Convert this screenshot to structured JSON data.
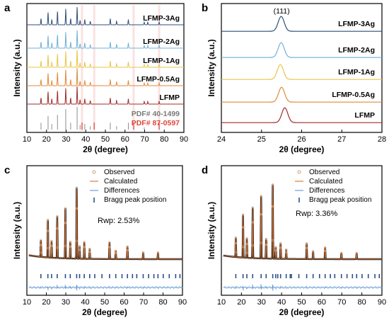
{
  "colors": {
    "lfmp_3ag": "#2f4f7a",
    "lfmp_2ag": "#6fb0d8",
    "lfmp_1ag": "#e8c547",
    "lfmp_05ag": "#e08a3c",
    "lfmp": "#a02c2c",
    "pdf_40_1499": "#8c8c8c",
    "pdf_87_0597": "#e0453a",
    "observed": "#c8a080",
    "calculated": "#e07b39",
    "differences": "#6a9fd8",
    "bragg": "#2d4f8a"
  },
  "chart_data": [
    {
      "panel": "a",
      "type": "line",
      "xlabel": "2θ (degree)",
      "ylabel": "Intensity (a.u.)",
      "xlim": [
        10,
        90
      ],
      "xticks": [
        10,
        20,
        30,
        40,
        50,
        60,
        70,
        80,
        90
      ],
      "series": [
        {
          "name": "LFMP-3Ag",
          "peaks": [
            [
              17.2,
              0.35
            ],
            [
              20.8,
              0.7
            ],
            [
              22.7,
              0.3
            ],
            [
              25.6,
              0.75
            ],
            [
              29.8,
              0.9
            ],
            [
              32.3,
              0.35
            ],
            [
              35.6,
              1.0
            ],
            [
              37.1,
              0.25
            ],
            [
              39.5,
              0.3
            ],
            [
              42.3,
              0.2
            ],
            [
              52.5,
              0.35
            ],
            [
              55.7,
              0.2
            ],
            [
              61.7,
              0.3
            ],
            [
              69.8,
              0.15
            ],
            [
              71.6,
              0.15
            ],
            [
              77.4,
              0.15
            ]
          ]
        },
        {
          "name": "LFMP-2Ag",
          "peaks": [
            [
              17.2,
              0.35
            ],
            [
              20.8,
              0.7
            ],
            [
              22.7,
              0.3
            ],
            [
              25.6,
              0.75
            ],
            [
              29.8,
              0.9
            ],
            [
              32.3,
              0.35
            ],
            [
              35.6,
              1.0
            ],
            [
              37.1,
              0.25
            ],
            [
              39.5,
              0.3
            ],
            [
              42.3,
              0.2
            ],
            [
              52.5,
              0.35
            ],
            [
              55.7,
              0.2
            ],
            [
              61.7,
              0.3
            ],
            [
              69.8,
              0.15
            ],
            [
              71.6,
              0.15
            ],
            [
              77.4,
              0.15
            ]
          ]
        },
        {
          "name": "LFMP-1Ag",
          "peaks": [
            [
              17.2,
              0.35
            ],
            [
              20.8,
              0.7
            ],
            [
              22.7,
              0.3
            ],
            [
              25.6,
              0.75
            ],
            [
              29.8,
              0.9
            ],
            [
              32.3,
              0.35
            ],
            [
              35.6,
              1.0
            ],
            [
              37.1,
              0.25
            ],
            [
              39.5,
              0.3
            ],
            [
              42.3,
              0.2
            ],
            [
              52.5,
              0.35
            ],
            [
              55.7,
              0.2
            ],
            [
              61.7,
              0.3
            ],
            [
              69.8,
              0.15
            ],
            [
              71.6,
              0.15
            ],
            [
              77.4,
              0.15
            ]
          ]
        },
        {
          "name": "LFMP-0.5Ag",
          "peaks": [
            [
              17.2,
              0.35
            ],
            [
              20.8,
              0.7
            ],
            [
              22.7,
              0.3
            ],
            [
              25.6,
              0.75
            ],
            [
              29.8,
              0.9
            ],
            [
              32.3,
              0.35
            ],
            [
              35.6,
              1.0
            ],
            [
              37.1,
              0.25
            ],
            [
              39.5,
              0.3
            ],
            [
              42.3,
              0.2
            ],
            [
              52.5,
              0.35
            ],
            [
              55.7,
              0.2
            ],
            [
              61.7,
              0.3
            ],
            [
              69.8,
              0.15
            ],
            [
              71.6,
              0.15
            ],
            [
              77.4,
              0.15
            ]
          ]
        },
        {
          "name": "LFMP",
          "peaks": [
            [
              17.2,
              0.35
            ],
            [
              20.8,
              0.7
            ],
            [
              22.7,
              0.3
            ],
            [
              25.6,
              0.75
            ],
            [
              29.8,
              0.9
            ],
            [
              32.3,
              0.35
            ],
            [
              35.6,
              1.0
            ],
            [
              37.1,
              0.25
            ],
            [
              39.5,
              0.3
            ],
            [
              42.3,
              0.2
            ],
            [
              52.5,
              0.35
            ],
            [
              55.7,
              0.2
            ],
            [
              61.7,
              0.3
            ],
            [
              69.8,
              0.15
            ],
            [
              71.6,
              0.15
            ],
            [
              77.4,
              0.15
            ]
          ]
        }
      ],
      "reference_lines": [
        {
          "name": "PDF# 40-1499",
          "positions": [
            17.2,
            20.8,
            22.7,
            25.6,
            29.8,
            32.3,
            35.6,
            37.1,
            39.5,
            42.3,
            52.5,
            55.7,
            61.7,
            69.8,
            77.4
          ],
          "heights": [
            0.3,
            0.6,
            0.25,
            0.65,
            0.9,
            0.3,
            1.0,
            0.2,
            0.25,
            0.15,
            0.3,
            0.15,
            0.3,
            0.1,
            0.1
          ]
        },
        {
          "name": "PDF# 87-0597",
          "positions": [
            38.1,
            44.3,
            64.4,
            77.4
          ]
        }
      ],
      "labels": [
        "LFMP-3Ag",
        "LFMP-2Ag",
        "LFMP-1Ag",
        "LFMP-0.5Ag",
        "LFMP",
        "PDF# 40-1499",
        "PDF# 87-0597"
      ]
    },
    {
      "panel": "b",
      "type": "line",
      "xlabel": "2θ (degree)",
      "ylabel": "Intensity (a.u.)",
      "xlim": [
        24,
        28
      ],
      "xticks": [
        24,
        25,
        26,
        27,
        28
      ],
      "annotation": "(111)",
      "series": [
        {
          "name": "LFMP-3Ag",
          "peak_center": 25.49
        },
        {
          "name": "LFMP-2Ag",
          "peak_center": 25.49
        },
        {
          "name": "LFMP-1Ag",
          "peak_center": 25.47
        },
        {
          "name": "LFMP-0.5Ag",
          "peak_center": 25.5
        },
        {
          "name": "LFMP",
          "peak_center": 25.58
        }
      ]
    },
    {
      "panel": "c",
      "type": "scatter",
      "xlabel": "2θ (degree)",
      "ylabel": "Intensity (a.u.)",
      "xlim": [
        10,
        90
      ],
      "xticks": [
        10,
        20,
        30,
        40,
        50,
        60,
        70,
        80,
        90
      ],
      "annotation": "Rwp:  2.53%",
      "legend": [
        "Observed",
        "Calculated",
        "Differences",
        "Bragg peak position"
      ],
      "legend_position": "top-right",
      "peaks": [
        [
          17.2,
          0.2
        ],
        [
          20.8,
          0.45
        ],
        [
          22.7,
          0.2
        ],
        [
          25.6,
          0.5
        ],
        [
          29.8,
          0.6
        ],
        [
          32.3,
          0.2
        ],
        [
          35.6,
          0.85
        ],
        [
          37.1,
          0.15
        ],
        [
          39.5,
          0.2
        ],
        [
          42.3,
          0.12
        ],
        [
          52.5,
          0.2
        ],
        [
          55.7,
          0.1
        ],
        [
          61.7,
          0.15
        ],
        [
          69.8,
          0.08
        ],
        [
          77.4,
          0.08
        ]
      ],
      "bragg_positions": [
        17.2,
        20.8,
        22.7,
        25.6,
        29.8,
        32.3,
        35.6,
        37.1,
        39.5,
        42.3,
        44.9,
        48.6,
        52.5,
        55.7,
        58.9,
        61.7,
        64.3,
        66.5,
        69.8,
        72.6,
        75.3,
        77.4,
        80.1,
        83.2,
        86.5,
        88.7
      ]
    },
    {
      "panel": "d",
      "type": "scatter",
      "xlabel": "2θ (degree)",
      "ylabel": "Intensity (a.u.)",
      "xlim": [
        10,
        90
      ],
      "xticks": [
        10,
        20,
        30,
        40,
        50,
        60,
        70,
        80,
        90
      ],
      "annotation": "Rwp:  3.36%",
      "legend": [
        "Observed",
        "Calculated",
        "Differences",
        "Bragg peak position"
      ],
      "legend_position": "top-right",
      "peaks": [
        [
          17.2,
          0.25
        ],
        [
          20.8,
          0.55
        ],
        [
          22.7,
          0.25
        ],
        [
          25.6,
          0.65
        ],
        [
          29.8,
          0.8
        ],
        [
          32.3,
          0.25
        ],
        [
          35.6,
          0.95
        ],
        [
          37.1,
          0.15
        ],
        [
          39.5,
          0.2
        ],
        [
          42.3,
          0.12
        ],
        [
          52.5,
          0.2
        ],
        [
          55.7,
          0.1
        ],
        [
          61.7,
          0.15
        ],
        [
          69.8,
          0.08
        ],
        [
          77.4,
          0.08
        ]
      ],
      "bragg_positions": [
        17.2,
        20.8,
        22.7,
        25.6,
        29.8,
        32.3,
        35.6,
        37.1,
        38.1,
        39.5,
        42.3,
        44.3,
        44.9,
        48.6,
        52.5,
        55.7,
        58.9,
        61.7,
        64.3,
        66.5,
        69.8,
        72.6,
        75.3,
        77.4,
        80.1,
        83.2,
        86.5,
        88.7
      ]
    }
  ]
}
